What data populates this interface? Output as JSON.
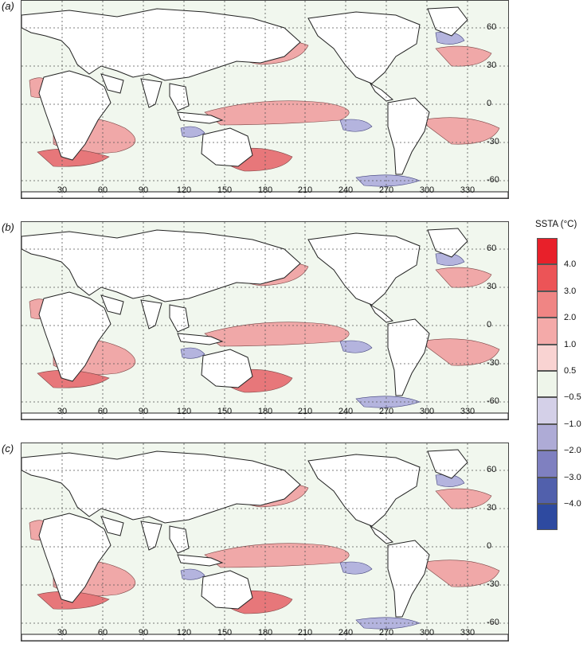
{
  "panels": [
    {
      "label": "(a)"
    },
    {
      "label": "(b)"
    },
    {
      "label": "(c)"
    }
  ],
  "x_ticks": [
    "30",
    "60",
    "90",
    "120",
    "150",
    "180",
    "210",
    "240",
    "270",
    "300",
    "330"
  ],
  "y_ticks": [
    "60",
    "30",
    "0",
    "-30",
    "-60"
  ],
  "legend": {
    "title": "SSTA (°C)",
    "ticks": [
      "4.0",
      "3.0",
      "2.0",
      "1.0",
      "0.5",
      "−0.5",
      "−1.0",
      "−2.0",
      "−3.0",
      "−4.0"
    ],
    "colors": [
      "#e8202a",
      "#ec5457",
      "#f08584",
      "#f4aaa9",
      "#f9d3d2",
      "#eef5ea",
      "#d4d0e8",
      "#aeabd6",
      "#7f80c0",
      "#5160ac",
      "#2e4aa0"
    ]
  },
  "colors": {
    "land": "#ffffff",
    "ocean_neutral": "#f1f7ee",
    "positive": "#f0a8a8",
    "positive_strong": "#e7777a",
    "negative": "#b4b4de"
  }
}
